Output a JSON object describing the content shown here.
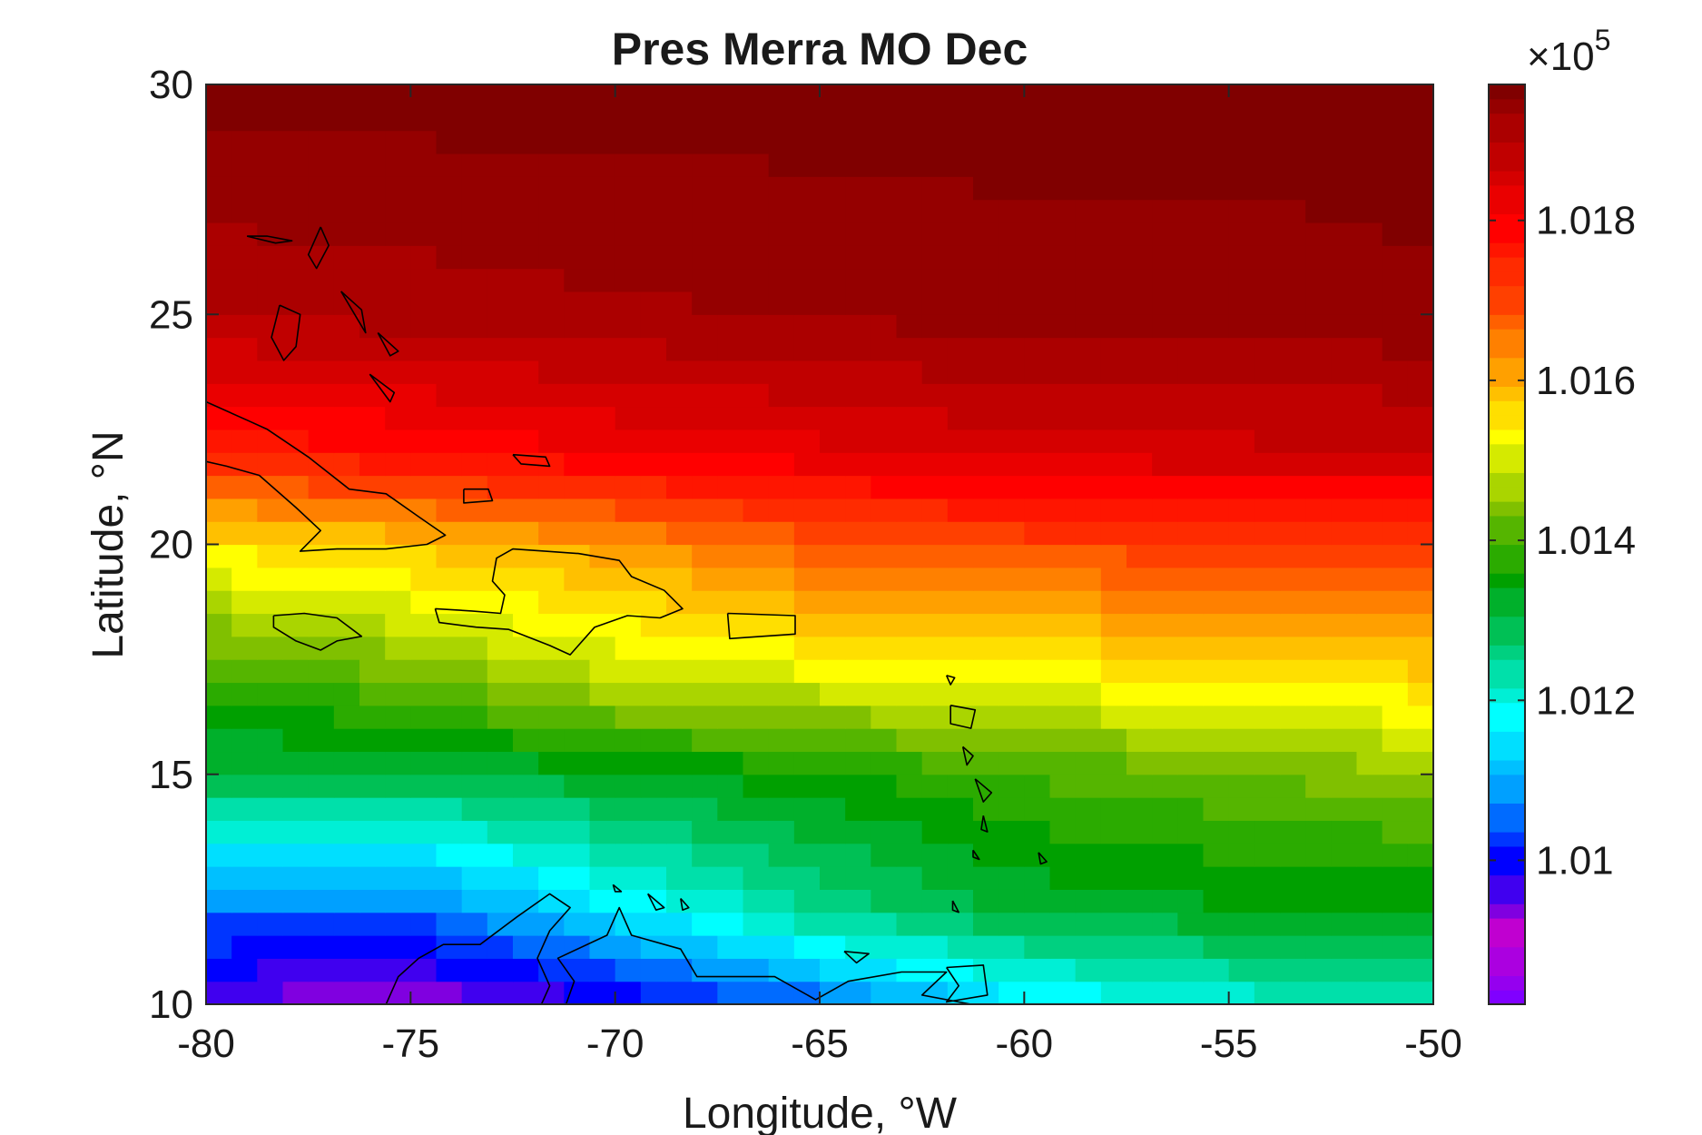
{
  "chart_data": {
    "type": "heatmap",
    "title": "Pres Merra MO Dec",
    "xlabel": "Longitude, °W",
    "ylabel": "Latitude, °N",
    "xlim": [
      -80,
      -50
    ],
    "ylim": [
      10,
      30
    ],
    "x_ticks": [
      -80,
      -75,
      -70,
      -65,
      -60,
      -55,
      -50
    ],
    "x_tick_labels": [
      "-80",
      "-75",
      "-70",
      "-65",
      "-60",
      "-55",
      "-50"
    ],
    "y_ticks": [
      10,
      15,
      20,
      25,
      30
    ],
    "y_tick_labels": [
      "10",
      "15",
      "20",
      "25",
      "30"
    ],
    "colorbar": {
      "range": [
        100820,
        101970
      ],
      "multiplier_label": "×10",
      "multiplier_exponent": "5",
      "ticks": [
        101000,
        101200,
        101400,
        101600,
        101800
      ],
      "tick_labels": [
        "1.01",
        "1.012",
        "1.014",
        "1.016",
        "1.018"
      ],
      "colormap": [
        "#8000ff",
        "#c000d0",
        "#0000ff",
        "#00a0ff",
        "#00ffff",
        "#00d080",
        "#00a000",
        "#80c000",
        "#ffff00",
        "#ffa000",
        "#ff4000",
        "#ff0000",
        "#c00000",
        "#800000"
      ]
    },
    "grid": false,
    "grid_resolution_deg": [
      0.625,
      0.5
    ],
    "pressure_field_samples": {
      "longitudes": [
        -80,
        -75,
        -70,
        -65,
        -60,
        -55,
        -50
      ],
      "rows": [
        {
          "lat": 30,
          "values": [
            101970,
            101970,
            101970,
            101970,
            101970,
            101970,
            101970
          ]
        },
        {
          "lat": 25,
          "values": [
            101900,
            101910,
            101920,
            101930,
            101940,
            101940,
            101950
          ]
        },
        {
          "lat": 22,
          "values": [
            101750,
            101780,
            101810,
            101830,
            101850,
            101860,
            101860
          ]
        },
        {
          "lat": 20,
          "values": [
            101550,
            101580,
            101620,
            101680,
            101700,
            101710,
            101720
          ]
        },
        {
          "lat": 17,
          "values": [
            101380,
            101420,
            101480,
            101500,
            101520,
            101540,
            101560
          ]
        },
        {
          "lat": 15,
          "values": [
            101300,
            101300,
            101330,
            101360,
            101400,
            101420,
            101450
          ]
        },
        {
          "lat": 12,
          "values": [
            101050,
            101050,
            101150,
            101250,
            101310,
            101330,
            101330
          ]
        },
        {
          "lat": 10,
          "values": [
            100950,
            100920,
            100980,
            101050,
            101150,
            101200,
            101220
          ]
        }
      ]
    },
    "coastline_outline_color": "#000000"
  }
}
